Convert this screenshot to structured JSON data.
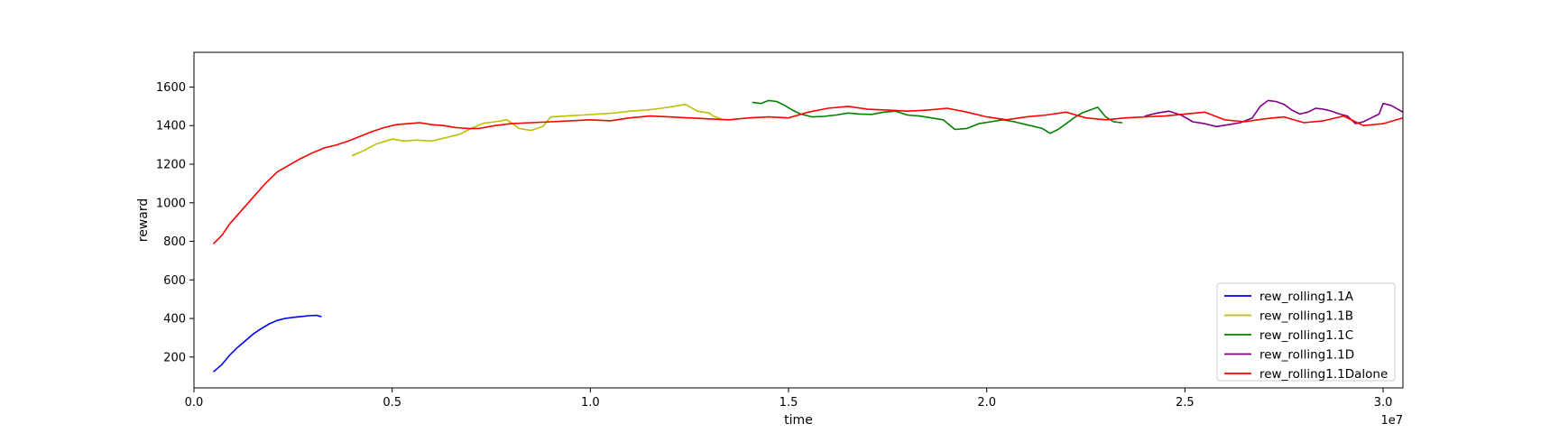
{
  "chart_data": {
    "type": "line",
    "title": "",
    "xlabel": "time",
    "ylabel": "reward",
    "x_offset_label": "1e7",
    "xlim": [
      0,
      30500000
    ],
    "ylim": [
      40,
      1780
    ],
    "x_ticks": [
      0,
      5000000,
      10000000,
      15000000,
      20000000,
      25000000,
      30000000
    ],
    "x_tick_labels": [
      "0.0",
      "0.5",
      "1.0",
      "1.5",
      "2.0",
      "2.5",
      "3.0"
    ],
    "y_ticks": [
      200,
      400,
      600,
      800,
      1000,
      1200,
      1400,
      1600
    ],
    "y_tick_labels": [
      "200",
      "400",
      "600",
      "800",
      "1000",
      "1200",
      "1400",
      "1600"
    ],
    "grid": false,
    "legend_position": "lower-right",
    "series": [
      {
        "name": "rew_rolling1.1A",
        "color": "#0000ff",
        "x": [
          500000,
          700000,
          900000,
          1100000,
          1300000,
          1500000,
          1700000,
          1900000,
          2100000,
          2300000,
          2500000,
          2700000,
          2900000,
          3100000,
          3200000
        ],
        "y": [
          125,
          160,
          210,
          250,
          285,
          320,
          348,
          372,
          390,
          400,
          406,
          410,
          414,
          416,
          410
        ]
      },
      {
        "name": "rew_rolling1.1B",
        "color": "#bfbf00",
        "x": [
          4000000,
          4300000,
          4600000,
          5000000,
          5300000,
          5600000,
          6000000,
          6300000,
          6700000,
          7000000,
          7300000,
          7600000,
          7900000,
          8200000,
          8500000,
          8800000,
          9000000,
          9400000,
          9800000,
          10200000,
          10600000,
          11000000,
          11400000,
          11800000,
          12100000,
          12400000,
          12700000,
          13000000,
          13100000,
          13300000
        ],
        "y": [
          1245,
          1272,
          1305,
          1330,
          1320,
          1325,
          1320,
          1335,
          1355,
          1385,
          1412,
          1420,
          1430,
          1385,
          1375,
          1395,
          1445,
          1450,
          1455,
          1460,
          1465,
          1475,
          1480,
          1490,
          1500,
          1510,
          1475,
          1465,
          1450,
          1435
        ]
      },
      {
        "name": "rew_rolling1.1C",
        "color": "#008000",
        "x": [
          14100000,
          14300000,
          14500000,
          14700000,
          14900000,
          15100000,
          15300000,
          15600000,
          15900000,
          16200000,
          16500000,
          16800000,
          17100000,
          17400000,
          17700000,
          18000000,
          18300000,
          18600000,
          18900000,
          19200000,
          19500000,
          19800000,
          20100000,
          20400000,
          20700000,
          21000000,
          21200000,
          21400000,
          21600000,
          21800000,
          22000000,
          22200000,
          22400000,
          22600000,
          22800000,
          23000000,
          23200000,
          23400000
        ],
        "y": [
          1520,
          1515,
          1530,
          1525,
          1505,
          1480,
          1460,
          1445,
          1448,
          1455,
          1465,
          1460,
          1458,
          1470,
          1475,
          1455,
          1450,
          1440,
          1430,
          1380,
          1385,
          1410,
          1420,
          1430,
          1420,
          1405,
          1395,
          1385,
          1360,
          1380,
          1410,
          1440,
          1465,
          1480,
          1495,
          1445,
          1420,
          1415
        ]
      },
      {
        "name": "rew_rolling1.1D",
        "color": "#800080",
        "x": [
          24000000,
          24300000,
          24600000,
          24900000,
          25200000,
          25500000,
          25800000,
          26100000,
          26400000,
          26700000,
          26900000,
          27100000,
          27300000,
          27500000,
          27700000,
          27900000,
          28100000,
          28300000,
          28500000,
          28700000,
          28900000,
          29100000,
          29300000,
          29500000,
          29700000,
          29900000,
          30000000,
          30200000,
          30500000
        ],
        "y": [
          1450,
          1465,
          1475,
          1455,
          1420,
          1410,
          1395,
          1405,
          1415,
          1440,
          1500,
          1530,
          1525,
          1510,
          1480,
          1460,
          1470,
          1490,
          1485,
          1475,
          1460,
          1450,
          1410,
          1420,
          1440,
          1460,
          1515,
          1505,
          1470
        ]
      },
      {
        "name": "rew_rolling1.1Dalone",
        "color": "#ff0000",
        "x": [
          500000,
          700000,
          900000,
          1200000,
          1500000,
          1800000,
          2100000,
          2400000,
          2700000,
          3000000,
          3300000,
          3600000,
          3900000,
          4200000,
          4500000,
          4800000,
          5100000,
          5400000,
          5700000,
          6000000,
          6300000,
          6600000,
          6900000,
          7200000,
          7600000,
          8000000,
          8500000,
          9000000,
          9500000,
          10000000,
          10500000,
          11000000,
          11500000,
          12000000,
          12500000,
          13000000,
          13500000,
          14000000,
          14500000,
          15000000,
          15500000,
          16000000,
          16500000,
          17000000,
          17500000,
          18000000,
          18500000,
          19000000,
          19500000,
          20000000,
          20500000,
          21000000,
          21500000,
          22000000,
          22500000,
          23000000,
          23500000,
          24000000,
          24500000,
          25000000,
          25500000,
          26000000,
          26500000,
          27000000,
          27500000,
          28000000,
          28500000,
          29000000,
          29500000,
          30000000,
          30500000
        ],
        "y": [
          790,
          830,
          890,
          960,
          1030,
          1100,
          1160,
          1195,
          1230,
          1260,
          1285,
          1300,
          1320,
          1345,
          1370,
          1390,
          1405,
          1410,
          1415,
          1405,
          1400,
          1390,
          1385,
          1385,
          1400,
          1410,
          1415,
          1420,
          1425,
          1430,
          1425,
          1440,
          1450,
          1445,
          1440,
          1435,
          1430,
          1440,
          1445,
          1440,
          1470,
          1490,
          1500,
          1485,
          1480,
          1475,
          1480,
          1490,
          1470,
          1445,
          1430,
          1445,
          1455,
          1470,
          1440,
          1430,
          1440,
          1445,
          1450,
          1460,
          1470,
          1430,
          1420,
          1435,
          1445,
          1415,
          1425,
          1450,
          1400,
          1410,
          1440
        ]
      }
    ]
  }
}
